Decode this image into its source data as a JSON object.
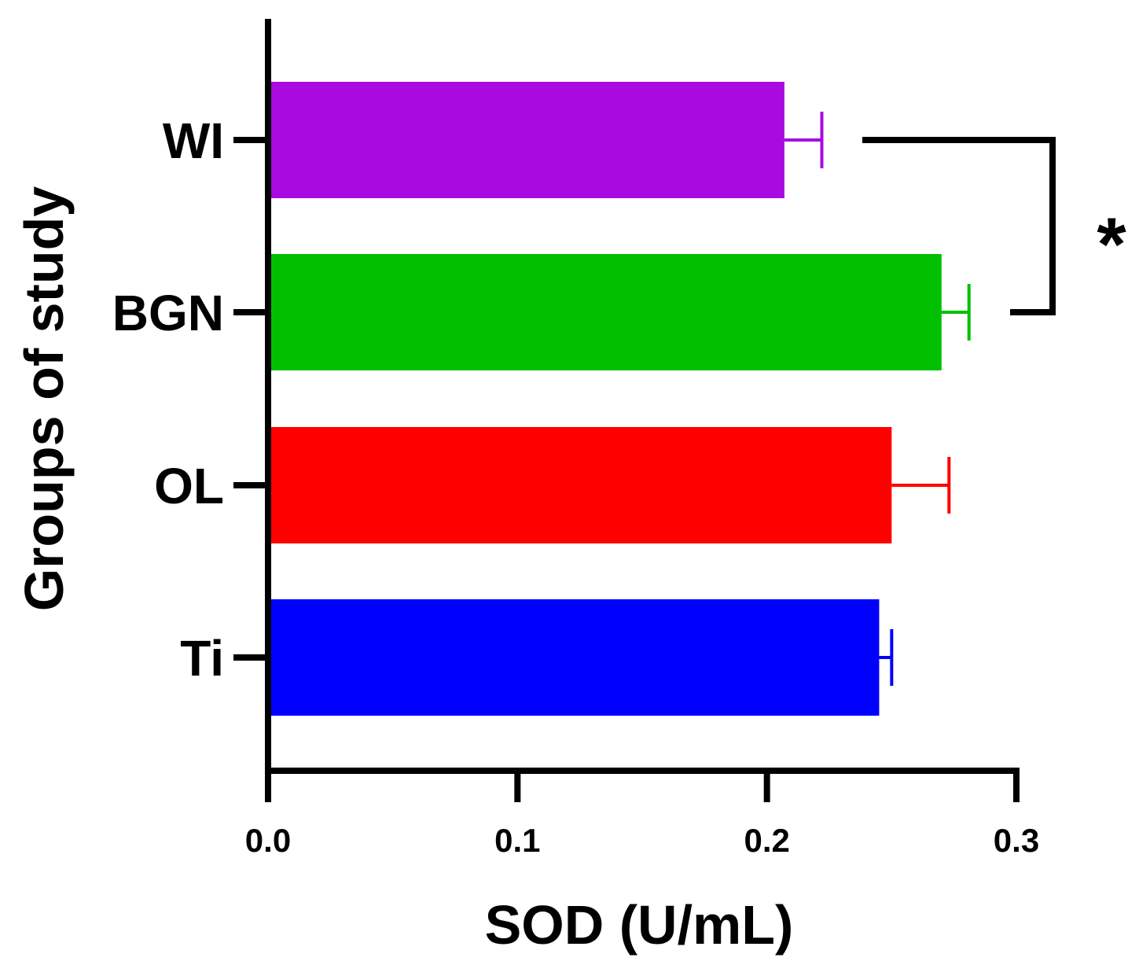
{
  "chart_data": {
    "type": "bar",
    "orientation": "horizontal",
    "title": "",
    "xlabel": "SOD (U/mL)",
    "ylabel": "Groups of study",
    "categories": [
      "WI",
      "BGN",
      "OL",
      "Ti"
    ],
    "values": [
      0.207,
      0.27,
      0.25,
      0.245
    ],
    "errors": [
      0.015,
      0.011,
      0.023,
      0.005
    ],
    "colors": [
      "#A90ADF",
      "#00C000",
      "#FF0000",
      "#0000FF"
    ],
    "xlim": [
      0.0,
      0.3
    ],
    "xticks": [
      0.0,
      0.1,
      0.2,
      0.3
    ],
    "xtick_labels": [
      "0.0",
      "0.1",
      "0.2",
      "0.3"
    ],
    "significance": [
      {
        "from": "WI",
        "to": "BGN",
        "label": "*"
      }
    ]
  }
}
